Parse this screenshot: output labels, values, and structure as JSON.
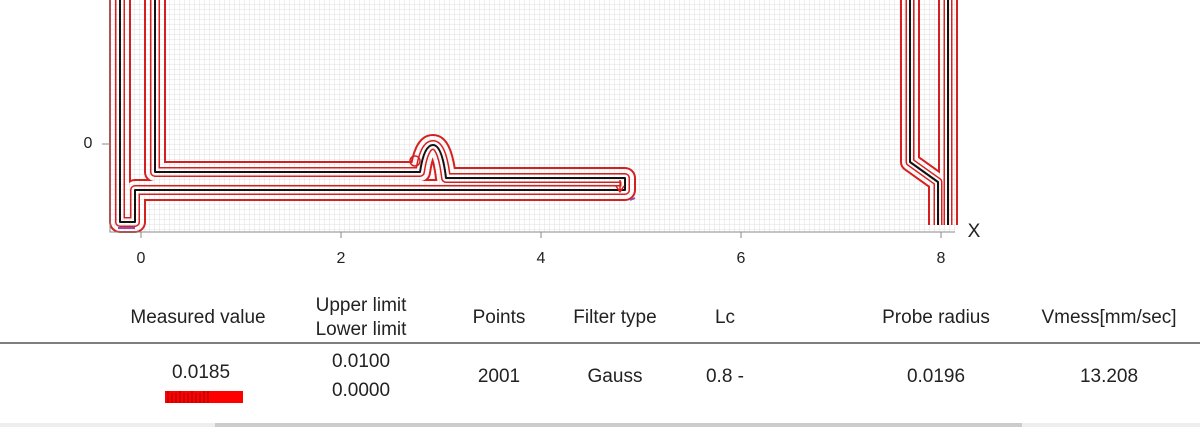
{
  "plot": {
    "x_label": "X",
    "x_ticks": [
      0,
      2,
      4,
      6,
      8
    ],
    "y_ticks": [
      0
    ]
  },
  "table": {
    "headers": [
      "Measured value",
      "Upper limit",
      "Lower limit",
      "Points",
      "Filter type",
      "Lc",
      "Probe radius",
      "Vmess[mm/sec]"
    ],
    "row": {
      "measured": "0.0185",
      "upper": "0.0100",
      "lower": "0.0000",
      "points": "2001",
      "filter": "Gauss",
      "lc": "0.8 -",
      "probe": "0.0196",
      "vmess": "13.208"
    }
  }
}
